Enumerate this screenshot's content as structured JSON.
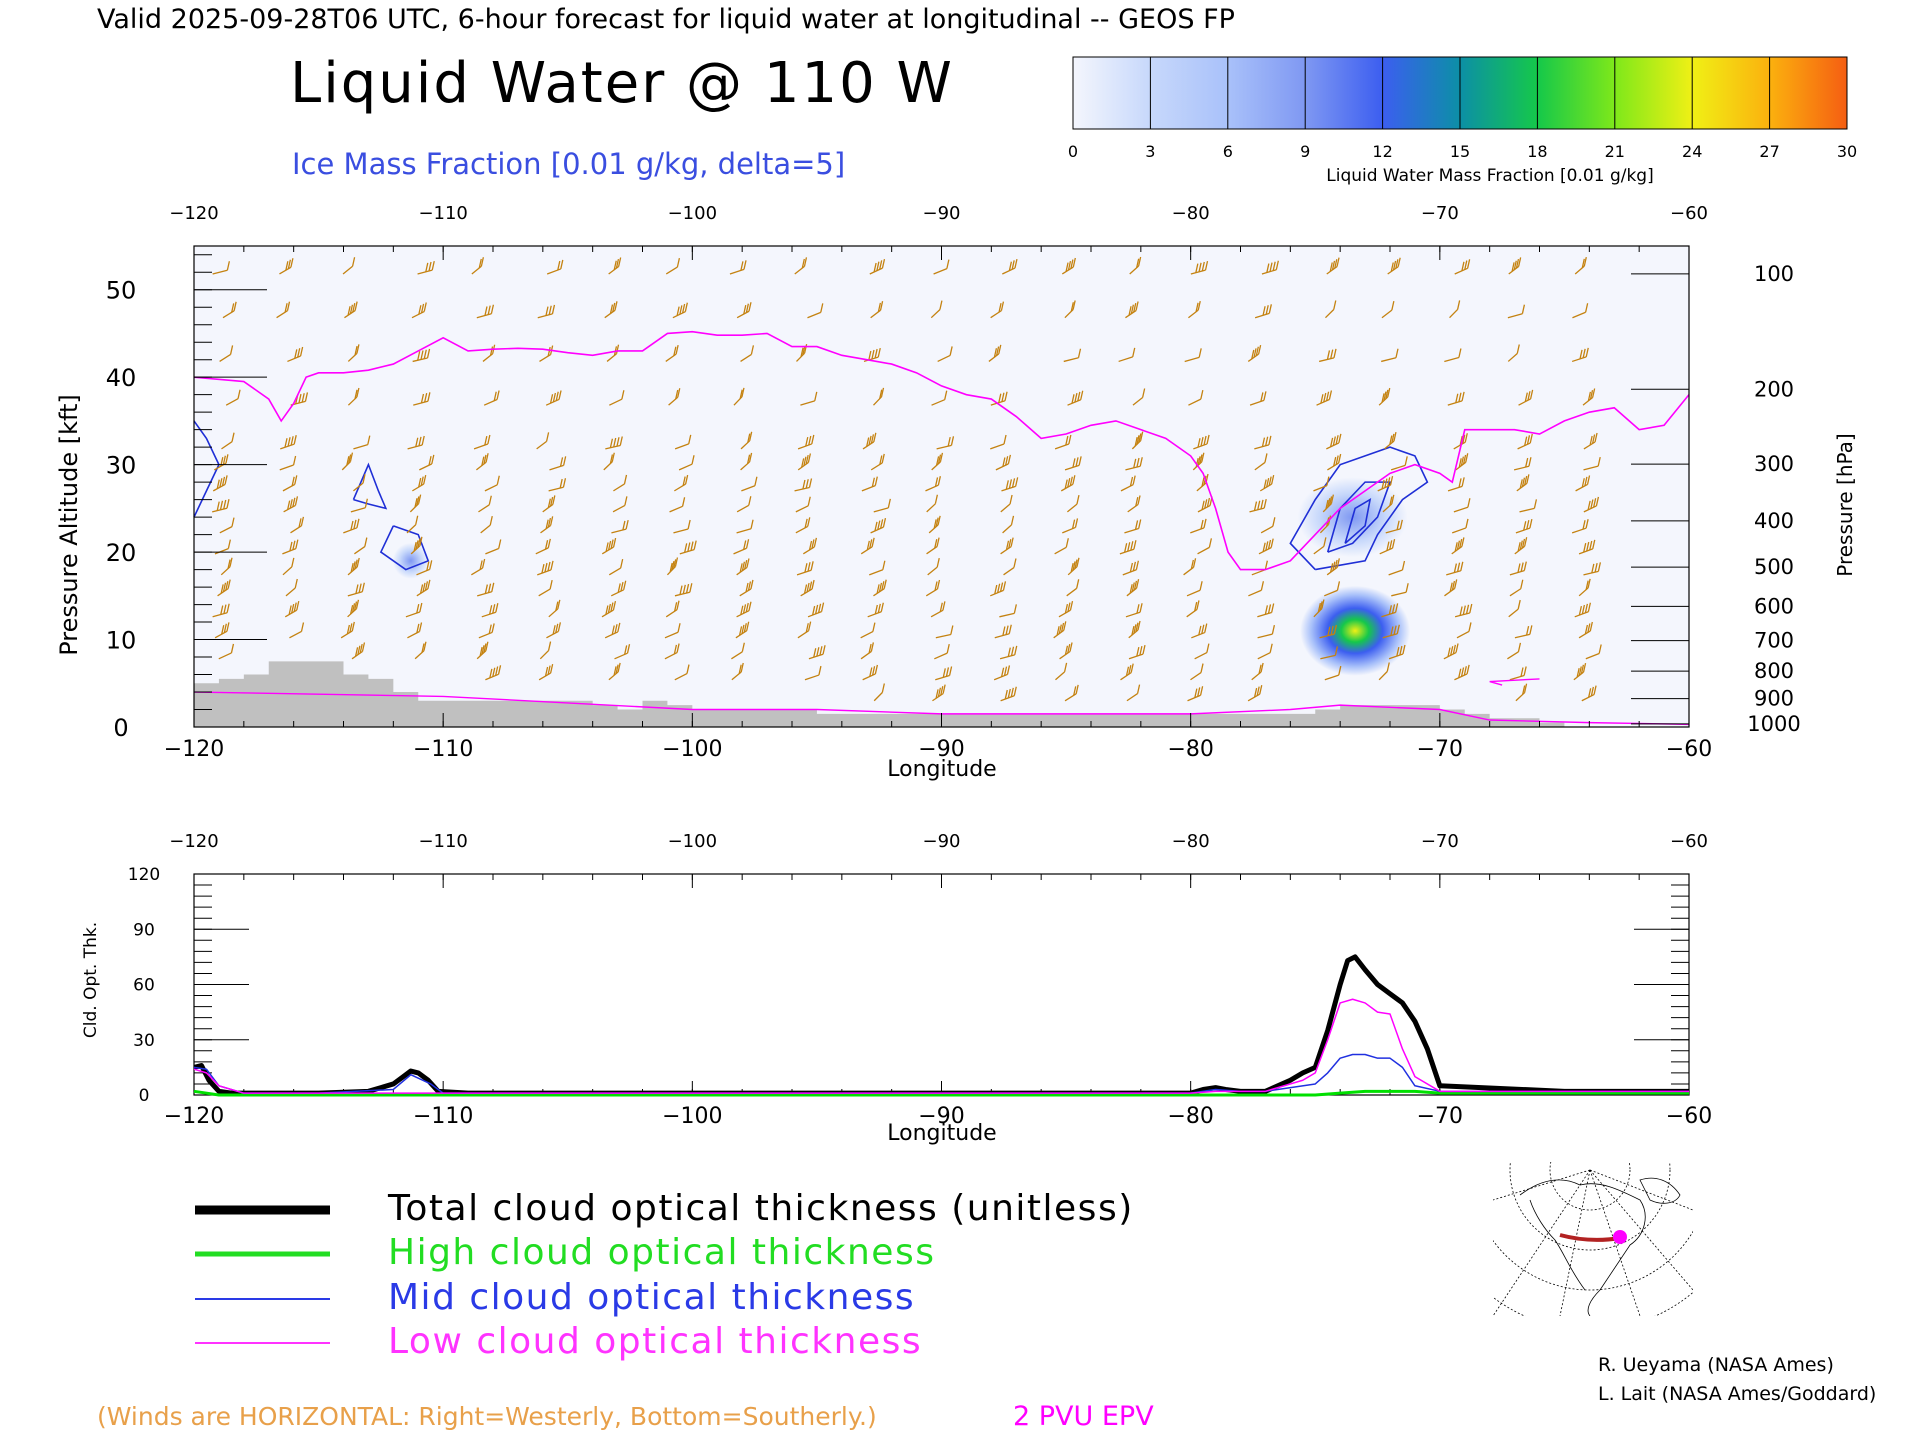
{
  "header": {
    "valid_line": "Valid 2025-09-28T06 UTC, 6-hour forecast for liquid water at longitudinal -- GEOS FP",
    "title": "Liquid Water @ 110 W",
    "ice_label": "Ice Mass Fraction [0.01 g/kg, delta=5]"
  },
  "colorbar": {
    "ticks": [
      "0",
      "3",
      "6",
      "9",
      "12",
      "15",
      "18",
      "21",
      "24",
      "27",
      "30"
    ],
    "label": "Liquid Water Mass Fraction [0.01 g/kg]",
    "colors": [
      "#f4f6fd",
      "#c7d8fb",
      "#a9c1fa",
      "#7f98f2",
      "#3c5ef0",
      "#0c8fa6",
      "#15c84a",
      "#7ee81a",
      "#f0f015",
      "#fbb10e",
      "#f55e12"
    ]
  },
  "colors": {
    "wind": "#c48210",
    "pv": "#ff00ff",
    "ice": "#1f2fd6",
    "terrain": "#c0c0c0",
    "text": "#000000",
    "ice_label": "#3a4ee0",
    "winds_note": "#e8a04a"
  },
  "top_chart": {
    "ylabel_left": "Pressure Altitude [kft]",
    "ylabel_right": "Pressure [hPa]",
    "xlabel": "Longitude",
    "xlim": [
      -120,
      -60
    ],
    "ylim": [
      0,
      55
    ],
    "x_ticks": [
      "−120",
      "−110",
      "−100",
      "−90",
      "−80",
      "−70",
      "−60"
    ],
    "y_ticks": [
      "0",
      "10",
      "20",
      "30",
      "40",
      "50"
    ],
    "p_ticks": [
      "100",
      "200",
      "300",
      "400",
      "500",
      "600",
      "700",
      "800",
      "900",
      "1000"
    ]
  },
  "bottom_chart": {
    "ylabel": "Cld. Opt. Thk.",
    "xlabel": "Longitude",
    "x_ticks": [
      "−120",
      "−110",
      "−100",
      "−90",
      "−80",
      "−70",
      "−60"
    ],
    "y_ticks": [
      "0",
      "30",
      "60",
      "90",
      "120"
    ]
  },
  "chart_data": [
    {
      "type": "line",
      "title": "Liquid Water @ 110 W",
      "xlabel": "Longitude",
      "ylabel": "Pressure Altitude [kft]",
      "xlim": [
        -120,
        -60
      ],
      "ylim": [
        0,
        55
      ],
      "grid": false,
      "series": [
        {
          "name": "2 PVU EPV",
          "x": [
            -120,
            -118,
            -117,
            -116.5,
            -116,
            -115.5,
            -115,
            -114,
            -113,
            -112,
            -111,
            -110,
            -109,
            -108,
            -107,
            -106,
            -105,
            -104,
            -103,
            -102,
            -101,
            -100,
            -99,
            -98,
            -97,
            -96,
            -95,
            -94,
            -93,
            -92,
            -91,
            -90,
            -89,
            -88,
            -87,
            -86,
            -85,
            -84,
            -83,
            -82,
            -81,
            -80,
            -79.5,
            -79,
            -78.5,
            -78,
            -77,
            -76,
            -75,
            -74,
            -73,
            -72,
            -71,
            -70,
            -69.5,
            -69,
            -68,
            -67,
            -66,
            -65,
            -64,
            -63,
            -62,
            -61,
            -60
          ],
          "y": [
            40,
            39.5,
            37.5,
            35,
            37,
            40,
            40.5,
            40.5,
            40.8,
            41.5,
            43,
            44.5,
            43,
            43.2,
            43.3,
            43.2,
            42.8,
            42.5,
            43,
            43,
            45,
            45.2,
            44.8,
            44.8,
            45,
            43.5,
            43.5,
            42.5,
            42,
            41.5,
            40.5,
            39,
            38,
            37.5,
            35.5,
            33,
            33.5,
            34.5,
            35,
            34,
            33,
            31,
            29,
            25,
            20,
            18,
            18,
            19,
            22,
            25,
            27,
            29,
            30,
            29,
            28,
            34,
            34,
            34,
            33.5,
            35,
            36,
            36.5,
            34,
            34.5,
            38
          ]
        }
      ],
      "terrain_kft": {
        "x": [
          -120,
          -119,
          -118,
          -117,
          -116,
          -115,
          -114,
          -113,
          -112,
          -111,
          -110,
          -109,
          -108,
          -107,
          -106,
          -105,
          -104,
          -103,
          -102,
          -101,
          -100,
          -95,
          -90,
          -85,
          -80,
          -76,
          -75,
          -74,
          -72,
          -70,
          -69,
          -68,
          -67,
          -66,
          -65,
          -64,
          -60
        ],
        "y": [
          5,
          5.5,
          6,
          7.5,
          7.5,
          7.5,
          6,
          5.5,
          4,
          3,
          3,
          3,
          3,
          3,
          3,
          3,
          2.5,
          2,
          3,
          2.5,
          2,
          1.5,
          1.5,
          1.5,
          1.5,
          1.5,
          2,
          2.5,
          2.5,
          2,
          1.5,
          1,
          1,
          0.5,
          0,
          0,
          0
        ]
      }
    },
    {
      "type": "line",
      "title": "",
      "xlabel": "Longitude",
      "ylabel": "Cld. Opt. Thk.",
      "xlim": [
        -120,
        -60
      ],
      "ylim": [
        0,
        120
      ],
      "grid": false,
      "series": [
        {
          "name": "Total cloud optical thickness (unitless)",
          "color": "#000000",
          "width": 5,
          "x": [
            -120,
            -119.7,
            -119.4,
            -119,
            -118.5,
            -117,
            -115,
            -113,
            -112,
            -111.6,
            -111.3,
            -111,
            -110.6,
            -110.2,
            -109,
            -100,
            -90,
            -80,
            -79.5,
            -79,
            -78.6,
            -78,
            -77,
            -76,
            -75.5,
            -75,
            -74.5,
            -74,
            -73.7,
            -73.4,
            -73,
            -72.5,
            -72,
            -71.5,
            -71,
            -70.5,
            -70,
            -65,
            -60
          ],
          "y": [
            15,
            16,
            8,
            2,
            1,
            1,
            1,
            2,
            6,
            10,
            13,
            12,
            8,
            2,
            1,
            1,
            1,
            1,
            3,
            4,
            3,
            2,
            2,
            8,
            12,
            15,
            35,
            60,
            73,
            75,
            68,
            60,
            55,
            50,
            40,
            25,
            5,
            2,
            2
          ]
        },
        {
          "name": "High cloud optical thickness",
          "color": "#00e000",
          "width": 3,
          "x": [
            -120,
            -119,
            -115,
            -110,
            -100,
            -90,
            -80,
            -75,
            -74,
            -73,
            -72,
            -71,
            -70,
            -65,
            -60
          ],
          "y": [
            2,
            0,
            0,
            0,
            0,
            0,
            0,
            0,
            1,
            2,
            2,
            2,
            1,
            1,
            1
          ]
        },
        {
          "name": "Mid cloud optical thickness",
          "color": "#2030e0",
          "width": 1.5,
          "x": [
            -120,
            -119.5,
            -119,
            -118,
            -115,
            -112,
            -111.3,
            -110.5,
            -110,
            -100,
            -90,
            -80,
            -79,
            -78,
            -77,
            -75,
            -74.5,
            -74,
            -73.5,
            -73,
            -72.5,
            -72,
            -71.5,
            -71,
            -70,
            -60
          ],
          "y": [
            15,
            14,
            5,
            1,
            1,
            3,
            11,
            6,
            1,
            1,
            1,
            1,
            3,
            2,
            2,
            6,
            12,
            20,
            22,
            22,
            20,
            20,
            15,
            5,
            2,
            2
          ]
        },
        {
          "name": "Low cloud optical thickness",
          "color": "#ff00ff",
          "width": 1.5,
          "x": [
            -120,
            -119.5,
            -119,
            -118,
            -110,
            -100,
            -90,
            -80,
            -79,
            -78,
            -77,
            -75.5,
            -75,
            -74.5,
            -74,
            -73.5,
            -73,
            -72.5,
            -72,
            -71.5,
            -71,
            -70,
            -60
          ],
          "y": [
            14,
            12,
            5,
            1,
            1,
            1,
            1,
            1,
            2,
            2,
            2,
            8,
            12,
            30,
            50,
            52,
            50,
            45,
            44,
            25,
            10,
            2,
            2
          ]
        }
      ]
    }
  ],
  "legend": {
    "items": [
      {
        "label": "Total cloud optical thickness (unitless)",
        "color": "#000000"
      },
      {
        "label": "High cloud optical thickness",
        "color": "#22dd22"
      },
      {
        "label": "Mid cloud optical thickness",
        "color": "#2a3ae6"
      },
      {
        "label": "Low cloud optical thickness",
        "color": "#ff33ff"
      }
    ]
  },
  "footer": {
    "winds_note": "(Winds are HORIZONTAL: Right=Westerly, Bottom=Southerly.)",
    "pv_label": "2 PVU EPV",
    "credit1": "R. Ueyama (NASA Ames)",
    "credit2": "L. Lait (NASA Ames/Goddard)"
  }
}
